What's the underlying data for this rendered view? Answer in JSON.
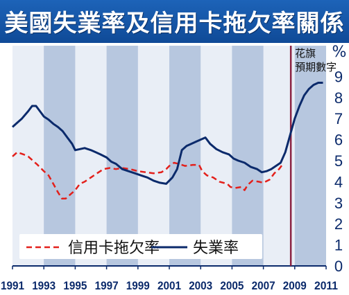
{
  "title": "美國失業率及信用卡拖欠率關係",
  "unit_label": "%",
  "forecast_annotation": [
    "花旗",
    "預期數字"
  ],
  "colors": {
    "title_bg": "#1560b0",
    "plot_bg": "#e9eef6",
    "band": "#b7c7df",
    "unemployment": "#0b2a6b",
    "delinquency": "#e3201b",
    "forecast_line": "#8a2242"
  },
  "chart_data": {
    "type": "line",
    "xlim": [
      1991,
      2011
    ],
    "ylim": [
      0,
      10
    ],
    "x_ticks": [
      "1991",
      "1993",
      "1995",
      "1997",
      "1999",
      "2001",
      "2003",
      "2005",
      "2007",
      "2009",
      "2011"
    ],
    "y_ticks": [
      "0",
      "1",
      "2",
      "3",
      "4",
      "5",
      "6",
      "7",
      "8",
      "9"
    ],
    "forecast_start": 2008.75,
    "legend": {
      "placement": "bottom-left"
    },
    "series": [
      {
        "name": "信用卡拖欠率",
        "style": "dashed",
        "points": [
          [
            1991.0,
            5.2
          ],
          [
            1991.3,
            5.4
          ],
          [
            1991.7,
            5.3
          ],
          [
            1992.0,
            5.2
          ],
          [
            1992.3,
            5.0
          ],
          [
            1992.6,
            4.8
          ],
          [
            1993.0,
            4.5
          ],
          [
            1993.3,
            4.3
          ],
          [
            1993.6,
            3.9
          ],
          [
            1993.9,
            3.5
          ],
          [
            1994.15,
            3.2
          ],
          [
            1994.4,
            3.2
          ],
          [
            1994.7,
            3.4
          ],
          [
            1995.0,
            3.6
          ],
          [
            1995.3,
            3.9
          ],
          [
            1995.6,
            4.0
          ],
          [
            1996.0,
            4.2
          ],
          [
            1996.4,
            4.4
          ],
          [
            1996.8,
            4.6
          ],
          [
            1997.2,
            4.65
          ],
          [
            1997.6,
            4.6
          ],
          [
            1998.0,
            4.65
          ],
          [
            1998.5,
            4.6
          ],
          [
            1999.0,
            4.5
          ],
          [
            1999.5,
            4.45
          ],
          [
            2000.0,
            4.4
          ],
          [
            2000.5,
            4.45
          ],
          [
            2000.8,
            4.6
          ],
          [
            2001.0,
            4.75
          ],
          [
            2001.3,
            4.9
          ],
          [
            2001.6,
            4.85
          ],
          [
            2002.0,
            4.75
          ],
          [
            2002.5,
            4.8
          ],
          [
            2002.9,
            4.8
          ],
          [
            2003.1,
            4.5
          ],
          [
            2003.4,
            4.3
          ],
          [
            2003.8,
            4.2
          ],
          [
            2004.2,
            4.0
          ],
          [
            2004.7,
            3.9
          ],
          [
            2004.9,
            3.75
          ],
          [
            2005.2,
            3.7
          ],
          [
            2005.6,
            3.75
          ],
          [
            2005.8,
            3.6
          ],
          [
            2006.0,
            3.85
          ],
          [
            2006.3,
            4.05
          ],
          [
            2006.7,
            4.0
          ],
          [
            2007.0,
            3.95
          ],
          [
            2007.4,
            4.1
          ],
          [
            2007.7,
            4.4
          ],
          [
            2008.0,
            4.6
          ],
          [
            2008.25,
            4.85
          ]
        ]
      },
      {
        "name": "失業率",
        "style": "solid",
        "points": [
          [
            1991.0,
            6.6
          ],
          [
            1991.3,
            6.8
          ],
          [
            1991.6,
            7.0
          ],
          [
            1992.0,
            7.35
          ],
          [
            1992.25,
            7.6
          ],
          [
            1992.5,
            7.6
          ],
          [
            1992.8,
            7.3
          ],
          [
            1993.0,
            7.1
          ],
          [
            1993.3,
            6.95
          ],
          [
            1993.6,
            6.75
          ],
          [
            1993.9,
            6.6
          ],
          [
            1994.2,
            6.4
          ],
          [
            1994.5,
            6.1
          ],
          [
            1994.8,
            5.8
          ],
          [
            1995.0,
            5.5
          ],
          [
            1995.3,
            5.55
          ],
          [
            1995.6,
            5.6
          ],
          [
            1996.0,
            5.5
          ],
          [
            1996.3,
            5.4
          ],
          [
            1996.6,
            5.3
          ],
          [
            1997.0,
            5.15
          ],
          [
            1997.3,
            4.95
          ],
          [
            1997.6,
            4.85
          ],
          [
            1998.0,
            4.6
          ],
          [
            1998.4,
            4.5
          ],
          [
            1998.8,
            4.4
          ],
          [
            1999.2,
            4.3
          ],
          [
            1999.6,
            4.2
          ],
          [
            2000.0,
            4.05
          ],
          [
            2000.4,
            3.95
          ],
          [
            2000.8,
            3.9
          ],
          [
            2001.2,
            4.2
          ],
          [
            2001.5,
            4.6
          ],
          [
            2001.8,
            5.5
          ],
          [
            2002.1,
            5.7
          ],
          [
            2002.4,
            5.8
          ],
          [
            2002.7,
            5.9
          ],
          [
            2003.0,
            6.0
          ],
          [
            2003.3,
            6.1
          ],
          [
            2003.6,
            5.8
          ],
          [
            2004.0,
            5.55
          ],
          [
            2004.4,
            5.4
          ],
          [
            2004.8,
            5.3
          ],
          [
            2005.1,
            5.1
          ],
          [
            2005.4,
            5.0
          ],
          [
            2005.8,
            4.9
          ],
          [
            2006.2,
            4.7
          ],
          [
            2006.6,
            4.6
          ],
          [
            2006.9,
            4.45
          ],
          [
            2007.2,
            4.5
          ],
          [
            2007.5,
            4.6
          ],
          [
            2007.8,
            4.75
          ],
          [
            2008.1,
            4.9
          ],
          [
            2008.4,
            5.4
          ],
          [
            2008.7,
            6.2
          ],
          [
            2009.0,
            7.0
          ],
          [
            2009.3,
            7.6
          ],
          [
            2009.6,
            8.1
          ],
          [
            2009.9,
            8.4
          ],
          [
            2010.2,
            8.6
          ],
          [
            2010.5,
            8.7
          ],
          [
            2010.8,
            8.7
          ]
        ]
      }
    ]
  }
}
